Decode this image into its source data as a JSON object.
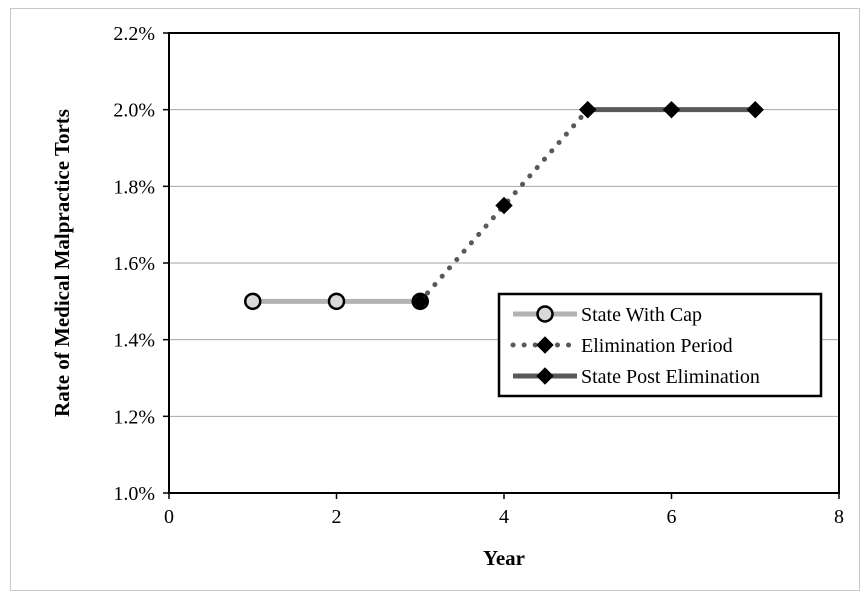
{
  "chart_data": {
    "type": "line",
    "xlabel": "Year",
    "ylabel": "Rate of Medical Malpractice Torts",
    "xlim": [
      0,
      8
    ],
    "ylim": [
      1.0,
      2.2
    ],
    "x_ticks": [
      "0",
      "2",
      "4",
      "6",
      "8"
    ],
    "y_ticks": [
      "1.0%",
      "1.2%",
      "1.4%",
      "1.6%",
      "1.8%",
      "2.0%",
      "2.2%"
    ],
    "grid": "horizontal",
    "legend_position": "right",
    "series": [
      {
        "name": "State With Cap",
        "style": "solid-smooth",
        "color": "#b3b3b3",
        "marker": "circle",
        "x": [
          1,
          2,
          3
        ],
        "y": [
          1.5,
          1.5,
          1.5
        ]
      },
      {
        "name": "Elimination Period",
        "style": "dotted",
        "color": "#595959",
        "marker": "diamond",
        "x": [
          3,
          4,
          5
        ],
        "y": [
          1.5,
          1.75,
          2.0
        ]
      },
      {
        "name": "State Post Elimination",
        "style": "solid-smooth",
        "color": "#595959",
        "marker": "diamond",
        "x": [
          5,
          6,
          7
        ],
        "y": [
          2.0,
          2.0,
          2.0
        ]
      }
    ]
  }
}
